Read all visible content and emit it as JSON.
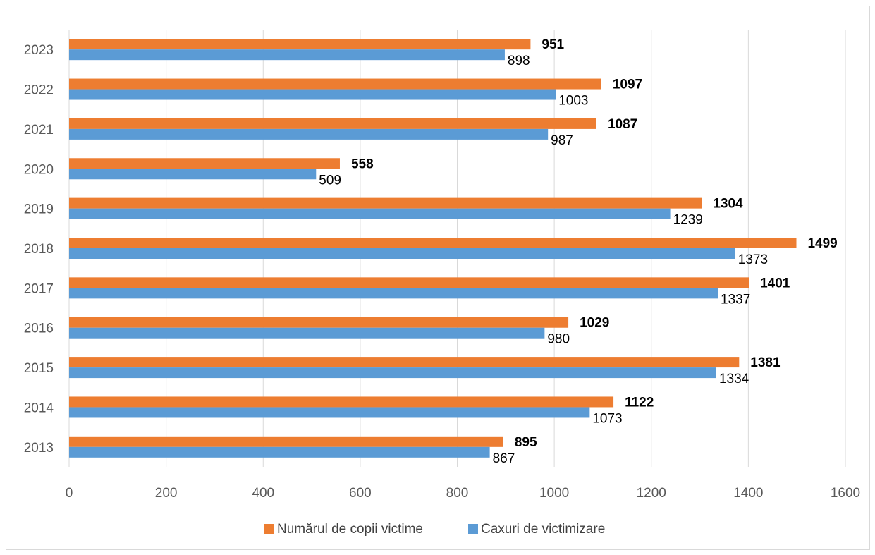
{
  "chart_data": {
    "type": "bar",
    "orientation": "horizontal",
    "categories": [
      "2013",
      "2014",
      "2015",
      "2016",
      "2017",
      "2018",
      "2019",
      "2020",
      "2021",
      "2022",
      "2023"
    ],
    "series": [
      {
        "name": "Numărul de copii victime",
        "color": "#ed7d31",
        "values": [
          895,
          1122,
          1381,
          1029,
          1401,
          1499,
          1304,
          558,
          1087,
          1097,
          951
        ],
        "label_style": "bold"
      },
      {
        "name": "Caxuri de victimizare",
        "color": "#5b9bd5",
        "values": [
          867,
          1073,
          1334,
          980,
          1337,
          1373,
          1239,
          509,
          987,
          1003,
          898
        ],
        "label_style": "normal"
      }
    ],
    "xlim": [
      0,
      1600
    ],
    "x_ticks": [
      0,
      200,
      400,
      600,
      800,
      1000,
      1200,
      1400,
      1600
    ],
    "grid": "vertical",
    "legend_position": "bottom",
    "title": "",
    "xlabel": "",
    "ylabel": ""
  }
}
